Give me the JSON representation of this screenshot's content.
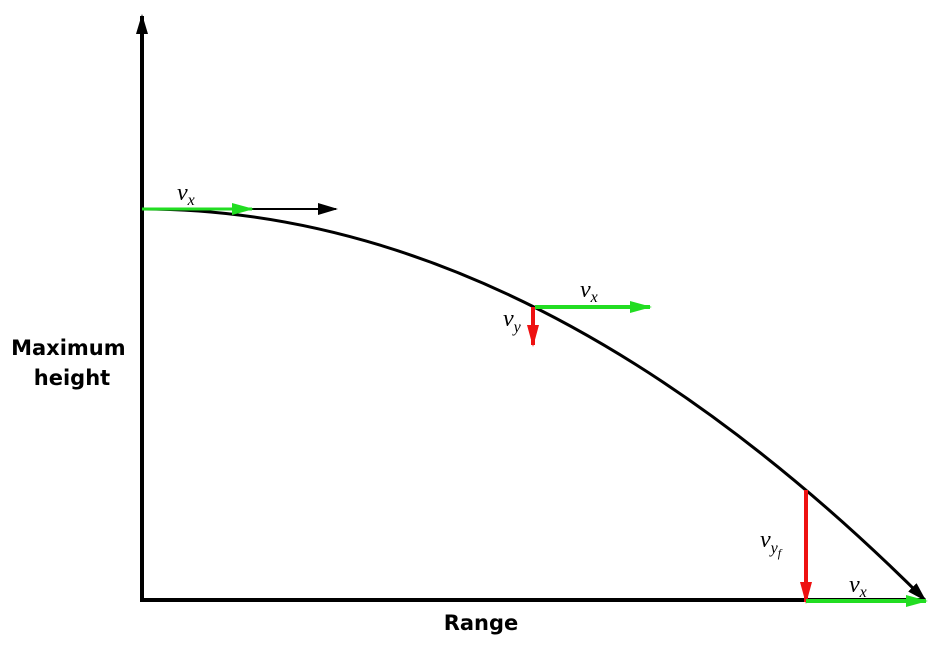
{
  "axes": {
    "y_label": [
      "Maximum",
      "height"
    ],
    "x_label": "Range"
  },
  "vectors": [
    {
      "base": "v",
      "sub": "x"
    },
    {
      "base": "v",
      "sub": "x"
    },
    {
      "base": "v",
      "sub": "y"
    },
    {
      "base": "v",
      "sub": "y",
      "subsub": "f"
    },
    {
      "base": "v",
      "sub": "x"
    }
  ]
}
